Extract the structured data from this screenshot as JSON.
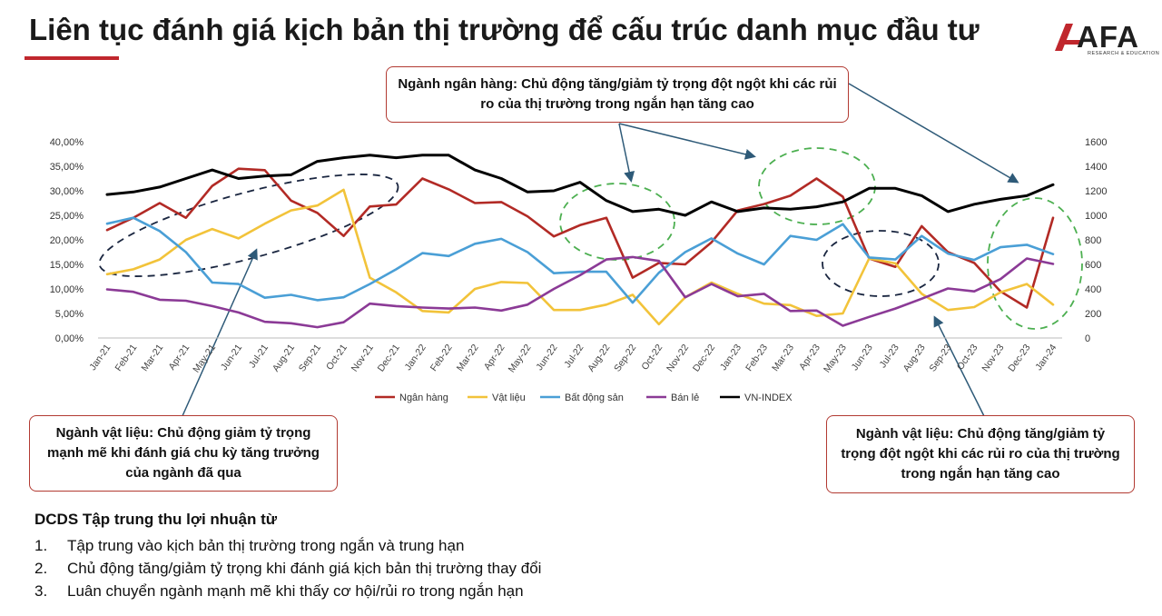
{
  "header": {
    "title": "Liên tục đánh giá kịch bản thị trường để cấu trúc danh mục đầu tư",
    "logo_text": "AFA",
    "logo_sub": "RESEARCH & EDUCATION",
    "accent_color": "#c0272d"
  },
  "callouts": {
    "bank": "Ngành ngân hàng: Chủ động tăng/giảm tỷ trọng đột ngột khi các rủi ro của thị trường trong ngắn hạn tăng cao",
    "materials_left": "Ngành vật liệu: Chủ động giảm tỷ trọng mạnh mẽ khi đánh giá chu kỳ tăng trưởng của ngành đã qua",
    "materials_right": "Ngành vật liệu: Chủ động tăng/giảm tỷ trọng đột ngột khi các rủi ro của thị trường trong ngắn hạn tăng cao"
  },
  "bottom": {
    "heading": "DCDS Tập trung thu lợi nhuận từ",
    "items": [
      {
        "num": "1.",
        "text": "Tập trung vào kịch bản thị trường trong ngắn và trung hạn"
      },
      {
        "num": "2.",
        "text": "Chủ động tăng/giảm tỷ trọng khi đánh giá kịch bản thị trường thay đổi"
      },
      {
        "num": "3.",
        "text": "Luân chuyển ngành mạnh mẽ khi thấy cơ hội/rủi ro trong ngắn hạn"
      }
    ]
  },
  "chart_data": {
    "type": "line",
    "categories": [
      "Jan-21",
      "Feb-21",
      "Mar-21",
      "Apr-21",
      "May-21",
      "Jun-21",
      "Jul-21",
      "Aug-21",
      "Sep-21",
      "Oct-21",
      "Nov-21",
      "Dec-21",
      "Jan-22",
      "Feb-22",
      "Mar-22",
      "Apr-22",
      "May-22",
      "Jun-22",
      "Jul-22",
      "Aug-22",
      "Sep-22",
      "Oct-22",
      "Nov-22",
      "Dec-22",
      "Jan-23",
      "Feb-23",
      "Mar-23",
      "Apr-23",
      "May-23",
      "Jun-23",
      "Jul-23",
      "Aug-23",
      "Sep-23",
      "Oct-23",
      "Nov-23",
      "Dec-23",
      "Jan-24"
    ],
    "y_left": {
      "min": 0,
      "max": 40,
      "step": 5,
      "tick_labels": [
        "0,00%",
        "5,00%",
        "10,00%",
        "15,00%",
        "20,00%",
        "25,00%",
        "30,00%",
        "35,00%",
        "40,00%"
      ]
    },
    "y_right": {
      "min": 0,
      "max": 1600,
      "step": 200,
      "tick_labels": [
        "0",
        "200",
        "400",
        "600",
        "800",
        "1000",
        "1200",
        "1400",
        "1600"
      ]
    },
    "grid": false,
    "legend_position": "bottom",
    "series": [
      {
        "name": "Ngân hàng",
        "axis": "left",
        "color": "#b22a25",
        "values": [
          22,
          24.5,
          27.5,
          24.5,
          31,
          34.5,
          34.2,
          28,
          25.5,
          20.8,
          26.8,
          27.2,
          32.5,
          30.3,
          27.5,
          27.7,
          24.8,
          20.7,
          23,
          24.5,
          12.3,
          15.3,
          15,
          19.5,
          26,
          27.3,
          29,
          32.5,
          28.8,
          16.2,
          14.5,
          22.8,
          17.5,
          15.3,
          9.5,
          6.2,
          24.5
        ]
      },
      {
        "name": "Vật liệu",
        "axis": "left",
        "color": "#f2c33a",
        "values": [
          13,
          14,
          16,
          20,
          22.2,
          20.3,
          23.3,
          26,
          27,
          30.2,
          12.3,
          9.3,
          5.5,
          5.2,
          10,
          11.4,
          11.2,
          5.7,
          5.7,
          6.8,
          8.8,
          2.8,
          8.3,
          11.3,
          9,
          7,
          6.7,
          4.5,
          5,
          16.2,
          15.2,
          9,
          5.7,
          6.3,
          9.3,
          11,
          6.8
        ]
      },
      {
        "name": "Bất động sản",
        "axis": "left",
        "color": "#4a9fd6",
        "values": [
          23.3,
          24.5,
          21.8,
          17.5,
          11.3,
          11,
          8.2,
          8.8,
          7.7,
          8.3,
          11,
          14,
          17.3,
          16.7,
          19.2,
          20.2,
          17.5,
          13.2,
          13.5,
          13.5,
          7.2,
          13.3,
          17.5,
          20.3,
          17.2,
          15,
          20.8,
          20,
          23.2,
          16.4,
          16,
          20.8,
          17.2,
          15.9,
          18.5,
          19,
          17.1
        ]
      },
      {
        "name": "Bán lẻ",
        "axis": "left",
        "color": "#8b3a96",
        "values": [
          9.9,
          9.4,
          7.8,
          7.6,
          6.5,
          5.2,
          3.3,
          3.0,
          2.2,
          3.2,
          7.0,
          6.5,
          6.2,
          6.0,
          6.2,
          5.6,
          6.8,
          10,
          12.8,
          16,
          16.5,
          15.7,
          8.3,
          11,
          8.5,
          9,
          5.5,
          5.6,
          2.5,
          4.3,
          6.0,
          8.0,
          10.1,
          9.5,
          12,
          16.2,
          15.1
        ]
      },
      {
        "name": "VN-INDEX",
        "axis": "right",
        "color": "#000000",
        "values": [
          1170,
          1190,
          1230,
          1300,
          1370,
          1300,
          1320,
          1330,
          1440,
          1470,
          1490,
          1470,
          1490,
          1490,
          1370,
          1300,
          1190,
          1200,
          1270,
          1120,
          1030,
          1050,
          1000,
          1110,
          1030,
          1060,
          1050,
          1070,
          1110,
          1220,
          1220,
          1160,
          1030,
          1090,
          1130,
          1160,
          1250
        ]
      }
    ]
  }
}
